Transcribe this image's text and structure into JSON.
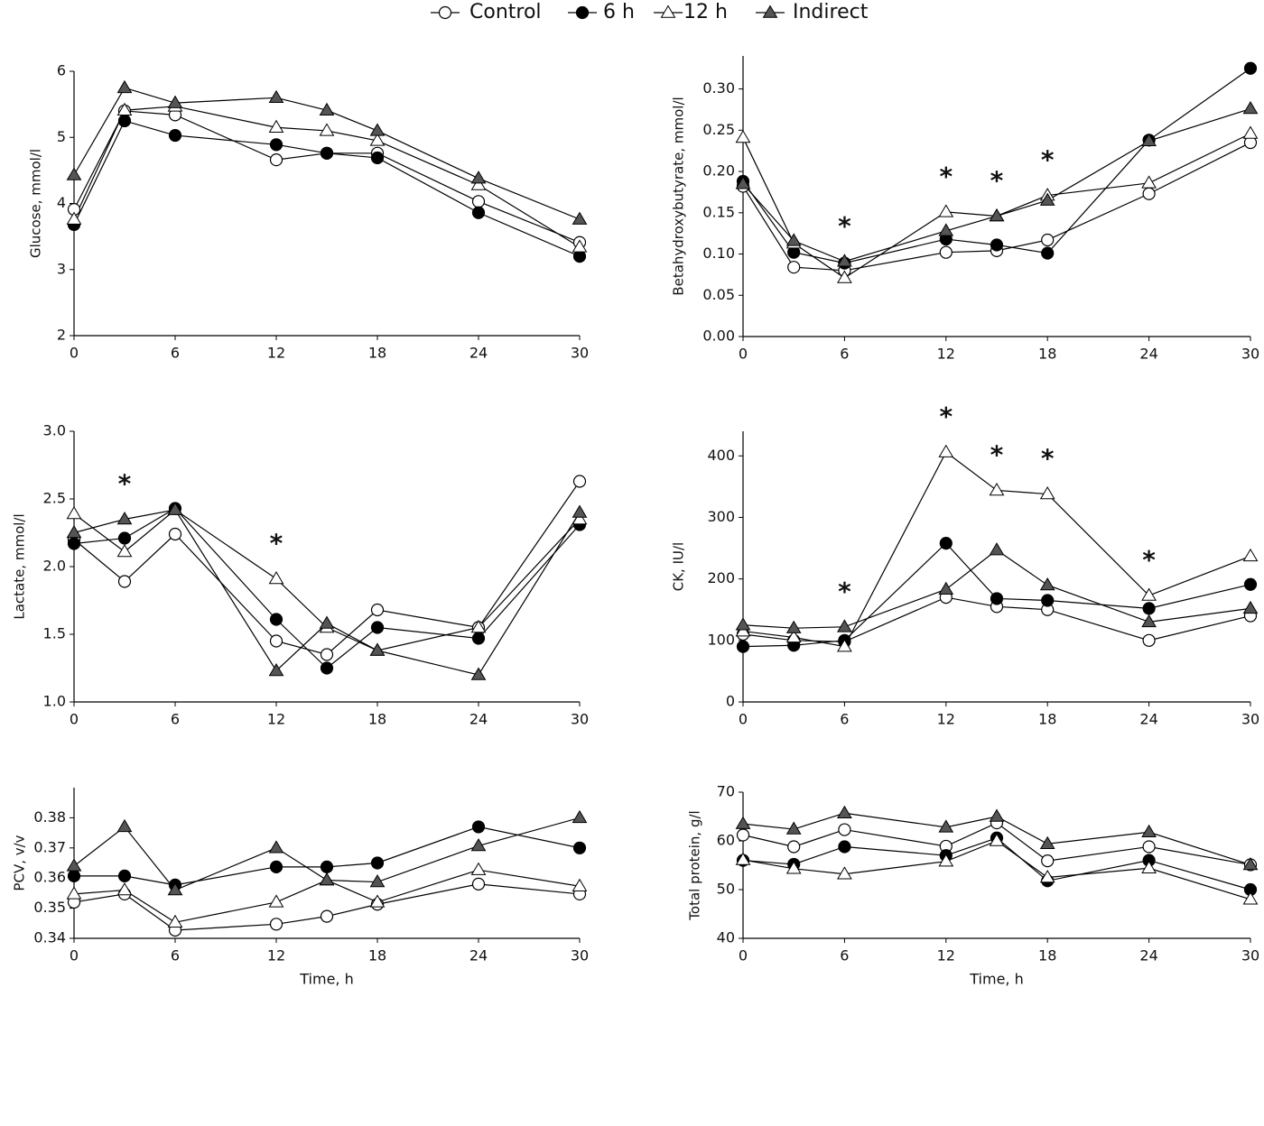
{
  "legend": [
    {
      "name": "Control",
      "marker": "circle-open"
    },
    {
      "name": "6 h",
      "marker": "circle-filled"
    },
    {
      "name": "12 h",
      "marker": "triangle-open"
    },
    {
      "name": "Indirect",
      "marker": "triangle-filled"
    }
  ],
  "chart_data": [
    {
      "type": "line",
      "ylabel": "Glucose, mmol/l",
      "x": [
        0,
        3,
        6,
        12,
        15,
        18,
        24,
        30
      ],
      "xlim": [
        0,
        30
      ],
      "xticks": [
        0,
        6,
        12,
        18,
        24,
        30
      ],
      "ylim": [
        2,
        6
      ],
      "yticks": [
        2,
        3,
        4,
        5,
        6
      ],
      "series": [
        {
          "marker": "circle-open",
          "values": [
            3.91,
            5.4,
            5.34,
            4.66,
            4.76,
            4.76,
            4.03,
            3.41
          ]
        },
        {
          "marker": "circle-filled",
          "values": [
            3.68,
            5.25,
            5.03,
            4.89,
            4.76,
            4.69,
            3.86,
            3.2
          ]
        },
        {
          "marker": "triangle-open",
          "values": [
            3.76,
            5.41,
            5.47,
            5.15,
            5.1,
            4.95,
            4.28,
            3.34
          ]
        },
        {
          "marker": "triangle-filled",
          "values": [
            4.43,
            5.75,
            5.52,
            5.6,
            5.41,
            5.1,
            4.38,
            3.76
          ]
        }
      ],
      "annotations": []
    },
    {
      "type": "line",
      "ylabel": "Betahydroxybutyrate, mmol/l",
      "x": [
        0,
        3,
        6,
        12,
        15,
        18,
        24,
        30
      ],
      "xlim": [
        0,
        30
      ],
      "xticks": [
        0,
        6,
        12,
        18,
        24,
        30
      ],
      "ylim": [
        0,
        0.34
      ],
      "yticks": [
        {
          "value": 0,
          "label": "0.00"
        },
        0.05,
        {
          "value": 0.1,
          "label": "0.10"
        },
        0.15,
        {
          "value": 0.2,
          "label": "0.20"
        },
        0.25,
        {
          "value": 0.3,
          "label": "0.30"
        }
      ],
      "series": [
        {
          "marker": "circle-open",
          "values": [
            0.182,
            0.084,
            0.08,
            0.102,
            0.104,
            0.117,
            0.173,
            0.235
          ]
        },
        {
          "marker": "circle-filled",
          "values": [
            0.188,
            0.102,
            0.089,
            0.118,
            0.111,
            0.101,
            0.238,
            0.325
          ]
        },
        {
          "marker": "triangle-open",
          "values": [
            0.241,
            0.113,
            0.071,
            0.151,
            0.146,
            0.171,
            0.186,
            0.246
          ]
        },
        {
          "marker": "triangle-filled",
          "values": [
            0.185,
            0.116,
            0.091,
            0.128,
            0.146,
            0.165,
            0.237,
            0.276
          ]
        }
      ],
      "annotations": [
        {
          "x": 6,
          "text": "*"
        },
        {
          "x": 12,
          "text": "*"
        },
        {
          "x": 15,
          "text": "*"
        },
        {
          "x": 18,
          "text": "*"
        }
      ]
    },
    {
      "type": "line",
      "ylabel": "Lactate, mmol/l",
      "x": [
        0,
        3,
        6,
        12,
        15,
        18,
        24,
        30
      ],
      "xlim": [
        0,
        30
      ],
      "xticks": [
        0,
        6,
        12,
        18,
        24,
        30
      ],
      "ylim": [
        1,
        3
      ],
      "yticks": [
        {
          "value": 1,
          "label": "1.0"
        },
        1.5,
        {
          "value": 2,
          "label": "2.0"
        },
        2.5,
        {
          "value": 3,
          "label": "3.0"
        }
      ],
      "series": [
        {
          "marker": "circle-open",
          "values": [
            2.2,
            1.89,
            2.24,
            1.45,
            1.35,
            1.68,
            1.55,
            2.63
          ]
        },
        {
          "marker": "circle-filled",
          "values": [
            2.17,
            2.21,
            2.43,
            1.61,
            1.25,
            1.55,
            1.47,
            2.31
          ]
        },
        {
          "marker": "triangle-open",
          "values": [
            2.39,
            2.11,
            2.42,
            1.91,
            1.55,
            1.38,
            1.55,
            2.35
          ]
        },
        {
          "marker": "triangle-filled",
          "values": [
            2.25,
            2.35,
            2.42,
            1.23,
            1.58,
            1.38,
            1.2,
            2.4
          ]
        }
      ],
      "annotations": [
        {
          "x": 3,
          "text": "*"
        },
        {
          "x": 12,
          "text": "*"
        }
      ]
    },
    {
      "type": "line",
      "ylabel": "CK, IU/l",
      "x": [
        0,
        3,
        6,
        12,
        15,
        18,
        24,
        30
      ],
      "xlim": [
        0,
        30
      ],
      "xticks": [
        0,
        6,
        12,
        18,
        24,
        30
      ],
      "ylim": [
        0,
        440
      ],
      "yticks": [
        0,
        100,
        200,
        300,
        400
      ],
      "series": [
        {
          "marker": "circle-open",
          "values": [
            110,
            100,
            98,
            170,
            155,
            150,
            100,
            140
          ]
        },
        {
          "marker": "circle-filled",
          "values": [
            90,
            92,
            100,
            258,
            168,
            165,
            152,
            191
          ]
        },
        {
          "marker": "triangle-open",
          "values": [
            115,
            105,
            90,
            406,
            344,
            338,
            173,
            237
          ]
        },
        {
          "marker": "triangle-filled",
          "values": [
            125,
            120,
            122,
            183,
            247,
            190,
            130,
            152
          ]
        }
      ],
      "annotations": [
        {
          "x": 6,
          "text": "*"
        },
        {
          "x": 12,
          "text": "*"
        },
        {
          "x": 15,
          "text": "*"
        },
        {
          "x": 18,
          "text": "*"
        },
        {
          "x": 24,
          "text": "*"
        }
      ]
    },
    {
      "type": "line",
      "ylabel": "PCV, v/v",
      "xlabel": "Time, h",
      "x": [
        0,
        3,
        6,
        12,
        15,
        18,
        24,
        30
      ],
      "xlim": [
        0,
        30
      ],
      "xticks": [
        0,
        6,
        12,
        18,
        24,
        30
      ],
      "ylim": [
        0.34,
        0.39
      ],
      "yticks": [
        0.34,
        0.35,
        0.36,
        0.37,
        0.38
      ],
      "series": [
        {
          "marker": "circle-open",
          "values": [
            0.352,
            0.3547,
            0.3427,
            0.3447,
            0.3473,
            0.3513,
            0.358,
            0.3547
          ]
        },
        {
          "marker": "circle-filled",
          "values": [
            0.3607,
            0.3607,
            0.3577,
            0.3637,
            0.3637,
            0.365,
            0.377,
            0.37
          ]
        },
        {
          "marker": "triangle-open",
          "values": [
            0.3547,
            0.356,
            0.3453,
            0.352,
            0.3593,
            0.352,
            0.3627,
            0.3573
          ]
        },
        {
          "marker": "triangle-filled",
          "values": [
            0.364,
            0.377,
            0.356,
            0.37,
            0.3593,
            0.3587,
            0.3707,
            0.38
          ]
        }
      ],
      "annotations": []
    },
    {
      "type": "line",
      "ylabel": "Total protein, g/l",
      "xlabel": "Time, h",
      "x": [
        0,
        3,
        6,
        12,
        15,
        18,
        24,
        30
      ],
      "xlim": [
        0,
        30
      ],
      "xticks": [
        0,
        6,
        12,
        18,
        24,
        30
      ],
      "ylim": [
        40,
        70
      ],
      "yticks": [
        40,
        50,
        60,
        70
      ],
      "series": [
        {
          "marker": "circle-open",
          "values": [
            61.2,
            58.8,
            62.3,
            58.9,
            63.7,
            55.9,
            58.8,
            55.1
          ]
        },
        {
          "marker": "circle-filled",
          "values": [
            56,
            55.2,
            58.8,
            57,
            60.6,
            51.8,
            56,
            50
          ]
        },
        {
          "marker": "triangle-open",
          "values": [
            56.1,
            54.3,
            53.2,
            55.8,
            60,
            52.5,
            54.4,
            48
          ]
        },
        {
          "marker": "triangle-filled",
          "values": [
            63.5,
            62.4,
            65.7,
            62.8,
            65,
            59.4,
            61.8,
            55.1
          ]
        }
      ],
      "annotations": []
    }
  ]
}
